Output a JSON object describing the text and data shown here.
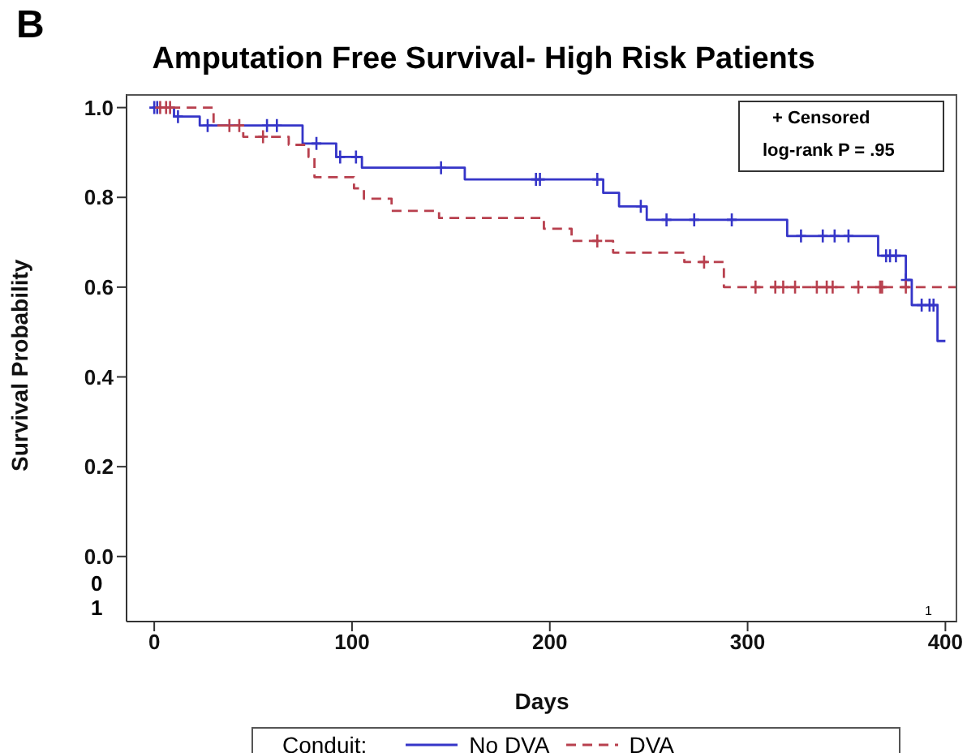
{
  "chart_data": {
    "type": "step",
    "title": "Amputation Free Survival- High Risk Patients",
    "xlabel": "Days",
    "ylabel": "Survival Probability",
    "legend_title": "Conduit:",
    "annotations": [
      "B",
      "+ Censored",
      "log-rank P = .95",
      "1",
      "0\n1"
    ],
    "xlim": [
      -14,
      406
    ],
    "xticks": [
      0,
      100,
      200,
      300,
      400
    ],
    "ylim": [
      -0.145,
      1.03
    ],
    "yticks": [
      {
        "value": 0,
        "label": "0.0"
      },
      {
        "value": 0.2,
        "label": "0.2"
      },
      {
        "value": 0.4,
        "label": "0.4"
      },
      {
        "value": 0.6,
        "label": "0.6"
      },
      {
        "value": 0.8,
        "label": "0.8"
      },
      {
        "value": 1,
        "label": "1.0"
      }
    ],
    "grid": false,
    "legend": "bottom",
    "marker": "none",
    "series": [
      {
        "name": "No DVA",
        "color": "#3535c8",
        "line_style": "solid",
        "x": [
          0,
          10,
          23,
          75,
          92,
          105,
          157,
          227,
          235,
          249,
          320,
          366,
          380,
          383,
          396,
          400
        ],
        "values": [
          1.0,
          0.98,
          0.96,
          0.92,
          0.89,
          0.866,
          0.84,
          0.81,
          0.78,
          0.75,
          0.714,
          0.67,
          0.616,
          0.56,
          0.48,
          0.48
        ]
      },
      {
        "name": "DVA",
        "color": "#b8404e",
        "line_style": "dashed",
        "x": [
          0,
          30,
          45,
          68,
          78,
          81,
          101,
          106,
          120,
          144,
          197,
          211,
          232,
          268,
          288,
          406
        ],
        "values": [
          1.0,
          0.96,
          0.935,
          0.917,
          0.89,
          0.845,
          0.82,
          0.797,
          0.77,
          0.754,
          0.73,
          0.703,
          0.677,
          0.656,
          0.6,
          0.6
        ]
      },
      {
        "type": "scatter",
        "color": "#3535c8",
        "marker": "cross",
        "x": [
          0,
          1.5,
          12,
          27,
          57,
          62,
          82,
          94,
          102,
          145,
          193,
          195,
          224,
          246,
          259,
          273,
          292,
          327,
          338,
          344,
          351,
          370,
          372,
          375,
          380,
          388,
          392,
          394
        ],
        "values": [
          1.0,
          1.0,
          0.98,
          0.96,
          0.96,
          0.96,
          0.92,
          0.89,
          0.89,
          0.866,
          0.84,
          0.84,
          0.84,
          0.78,
          0.75,
          0.75,
          0.75,
          0.714,
          0.714,
          0.714,
          0.714,
          0.67,
          0.67,
          0.67,
          0.616,
          0.56,
          0.56,
          0.56
        ]
      },
      {
        "type": "scatter",
        "color": "#b8404e",
        "marker": "cross",
        "x": [
          3,
          6,
          8,
          38,
          43,
          55,
          224,
          278,
          304,
          314,
          318,
          324,
          335,
          340,
          343,
          356,
          367,
          368,
          380
        ],
        "values": [
          1.0,
          1.0,
          1.0,
          0.96,
          0.96,
          0.935,
          0.703,
          0.656,
          0.6,
          0.6,
          0.6,
          0.6,
          0.6,
          0.6,
          0.6,
          0.6,
          0.6,
          0.6,
          0.6
        ]
      }
    ]
  }
}
